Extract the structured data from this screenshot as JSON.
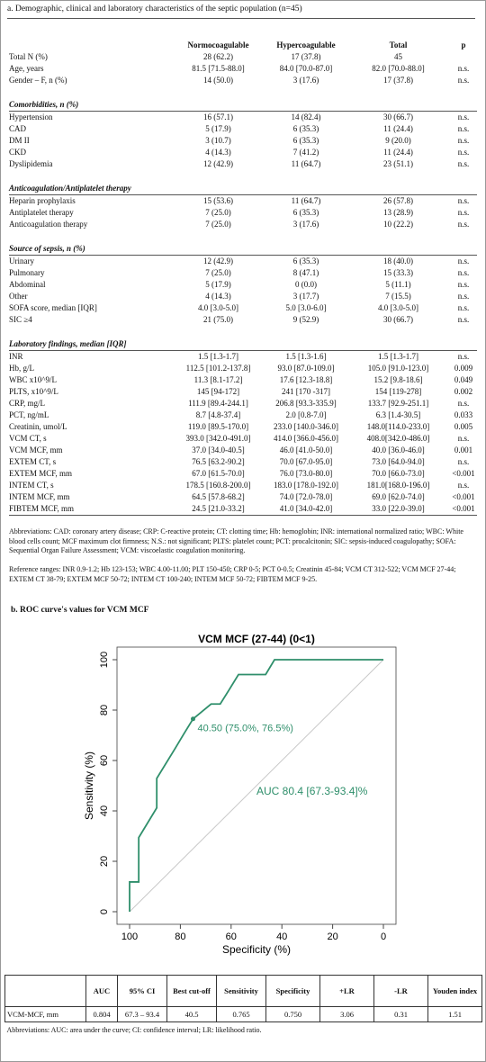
{
  "section_a_title": "a. Demographic, clinical and laboratory characteristics of the septic population (n=45)",
  "table": {
    "columns": [
      "Normocoagulable",
      "Hypercoagulable",
      "Total",
      "p"
    ],
    "groups": [
      {
        "rows": [
          [
            "Total N (%)",
            "28 (62.2)",
            "17 (37.8)",
            "45"
          ],
          [
            "Age, years",
            "81.5 [71.5-88.0]",
            "84.0 [70.0-87.0]",
            "82.0 [70.0-88.0]",
            "n.s."
          ],
          [
            "Gender – F, n (%)",
            "14 (50.0)",
            "3 (17.6)",
            "17 (37.8)",
            "n.s."
          ]
        ]
      },
      {
        "heading": "Comorbidities, n (%)",
        "rows": [
          [
            "Hypertension",
            "16 (57.1)",
            "14 (82.4)",
            "30 (66.7)",
            "n.s."
          ],
          [
            "CAD",
            "5 (17.9)",
            "6 (35.3)",
            "11 (24.4)",
            "n.s."
          ],
          [
            "DM II",
            "3 (10.7)",
            "6 (35.3)",
            "9 (20.0)",
            "n.s."
          ],
          [
            "CKD",
            "4 (14.3)",
            "7 (41.2)",
            "11 (24.4)",
            "n.s."
          ],
          [
            "Dyslipidemia",
            "12 (42.9)",
            "11 (64.7)",
            "23 (51.1)",
            "n.s."
          ]
        ]
      },
      {
        "heading": "Anticoagulation/Antiplatelet therapy",
        "rows": [
          [
            "Heparin prophylaxis",
            "15 (53.6)",
            "11 (64.7)",
            "26 (57.8)",
            "n.s."
          ],
          [
            "Antiplatelet therapy",
            "7 (25.0)",
            "6 (35.3)",
            "13 (28.9)",
            "n.s."
          ],
          [
            "Anticoagulation therapy",
            "7 (25.0)",
            "3 (17.6)",
            "10 (22.2)",
            "n.s."
          ]
        ]
      },
      {
        "heading": "Source of sepsis, n (%)",
        "rows": [
          [
            "Urinary",
            "12 (42.9)",
            "6 (35.3)",
            "18 (40.0)",
            "n.s."
          ],
          [
            "Pulmonary",
            "7 (25.0)",
            "8 (47.1)",
            "15 (33.3)",
            "n.s."
          ],
          [
            "Abdominal",
            "5 (17.9)",
            "0 (0.0)",
            "5 (11.1)",
            "n.s."
          ],
          [
            "Other",
            "4 (14.3)",
            "3 (17.7)",
            "7 (15.5)",
            "n.s."
          ],
          [
            "SOFA score, median [IQR]",
            "4.0 [3.0-5.0]",
            "5.0 [3.0-6.0]",
            "4.0 [3.0-5.0]",
            "n.s."
          ],
          [
            "SIC ≥4",
            "21 (75.0)",
            "9 (52.9)",
            "30 (66.7)",
            "n.s."
          ]
        ]
      },
      {
        "heading": "Laboratory findings, median [IQR]",
        "rows": [
          [
            "INR",
            "1.5 [1.3-1.7]",
            "1.5 [1.3-1.6]",
            "1.5 [1.3-1.7]",
            "n.s."
          ],
          [
            "Hb, g/L",
            "112.5 [101.2-137.8]",
            "93.0 [87.0-109.0]",
            "105.0 [91.0-123.0]",
            "0.009"
          ],
          [
            "WBC x10^9/L",
            "11.3 [8.1-17.2]",
            "17.6 [12.3-18.8]",
            "15.2 [9.8-18.6]",
            "0.049"
          ],
          [
            "PLTS, x10^9/L",
            "145 [94-172]",
            "241 [170 -317]",
            "154 [119-278]",
            "0.002"
          ],
          [
            "CRP, mg/L",
            "111.9 [89.4-244.1]",
            "206.8 [93.3-335.9]",
            "133.7 [92.9-251.1]",
            "n.s."
          ],
          [
            "PCT, ng/mL",
            "8.7 [4.8-37.4]",
            "2.0 [0.8-7.0]",
            "6.3 [1.4-30.5]",
            "0.033"
          ],
          [
            "Creatinin, umol/L",
            "119.0 [89.5-170.0]",
            "233.0 [140.0-346.0]",
            "148.0[114.0-233.0]",
            "0.005"
          ],
          [
            "VCM CT, s",
            "393.0 [342.0-491.0]",
            "414.0 [366.0-456.0]",
            "408.0[342.0-486.0]",
            "n.s."
          ],
          [
            "VCM MCF, mm",
            "37.0 [34.0-40.5]",
            "46.0 [41.0-50.0]",
            "40.0 [36.0-46.0]",
            "0.001"
          ],
          [
            "EXTEM CT, s",
            "76.5 [63.2-90.2]",
            "70.0 [67.0-95.0]",
            "73.0 [64.0-94.0]",
            "n.s."
          ],
          [
            "EXTEM MCF, mm",
            "67.0 [61.5-70.0]",
            "76.0 [73.0-80.0]",
            "70.0 [66.0-73.0]",
            "<0.001"
          ],
          [
            "INTEM CT, s",
            "178.5 [160.8-200.0]",
            "183.0 [178.0-192.0]",
            "181.0[168.0-196.0]",
            "n.s."
          ],
          [
            "INTEM MCF, mm",
            "64.5 [57.8-68.2]",
            "74.0 [72.0-78.0]",
            "69.0 [62.0-74.0]",
            "<0.001"
          ],
          [
            "FIBTEM MCF, mm",
            "24.5 [21.0-33.2]",
            "41.0 [34.0-42.0]",
            "33.0 [22.0-39.0]",
            "<0.001"
          ]
        ]
      }
    ]
  },
  "abbreviations": "Abbreviations: CAD: coronary artery disease; CRP: C-reactive protein; CT: clotting time; Hb: hemoglobin; INR: international normalized ratio; WBC: White blood cells count; MCF maximum clot firmness; N.S.: not significant; PLTS: platelet count; PCT: procalcitonin; SIC: sepsis-induced coagulopathy; SOFA: Sequential Organ Failure Assessment; VCM: viscoelastic coagulation monitoring.",
  "reference_ranges": "Reference ranges: INR 0.9-1.2; Hb 123-153; WBC 4.00-11.00; PLT 150-450; CRP 0-5; PCT 0-0.5; Creatinin 45-84; VCM CT 312-522; VCM MCF 27-44; EXTEM CT 38-79; EXTEM MCF 50-72; INTEM CT 100-240; INTEM MCF 50-72; FIBTEM MCF 9-25.",
  "section_b_title": "b. ROC curve's values for VCM MCF",
  "chart_data": {
    "type": "line",
    "title": "VCM MCF (27-44) (0<1)",
    "x_label": "Specificity (%)",
    "y_label": "Sensitivity (%)",
    "x": [
      100,
      100,
      96.4,
      96.4,
      89.3,
      89.3,
      82.1,
      78.6,
      75,
      67.9,
      64.3,
      60.7,
      57.1,
      46.4,
      42.9,
      0
    ],
    "series": [
      {
        "color": "#2f8f6b",
        "values": [
          0,
          11.8,
          11.8,
          29.4,
          41.2,
          52.9,
          64.7,
          70.6,
          76.5,
          82.4,
          82.4,
          88.2,
          94.1,
          94.1,
          100,
          100
        ]
      }
    ],
    "cutoff_point": {
      "x": 75,
      "y": 76.5
    },
    "annotations": [
      "40.50 (75.0%, 76.5%)",
      "AUC 80.4 [67.3-93.4]%"
    ],
    "xlim": [
      100,
      0
    ],
    "xticks": [
      100,
      80,
      60,
      40,
      20,
      0
    ],
    "ylim": [
      0,
      100
    ],
    "yticks": [
      0,
      20,
      40,
      60,
      80,
      100
    ],
    "diagonal_color": "#c8c8c8"
  },
  "roc_table": {
    "columns": [
      "AUC",
      "95% CI",
      "Best cut-off",
      "Sensitivity",
      "Specificity",
      "+LR",
      "-LR",
      "Youden index"
    ],
    "row_label": "VCM-MCF, mm",
    "row": [
      "0.804",
      "67.3 – 93.4",
      "40.5",
      "0.765",
      "0.750",
      "3.06",
      "0.31",
      "1.51"
    ],
    "note": "Abbreviations: AUC: area under the curve; CI: confidence interval; LR: likelihood ratio."
  }
}
